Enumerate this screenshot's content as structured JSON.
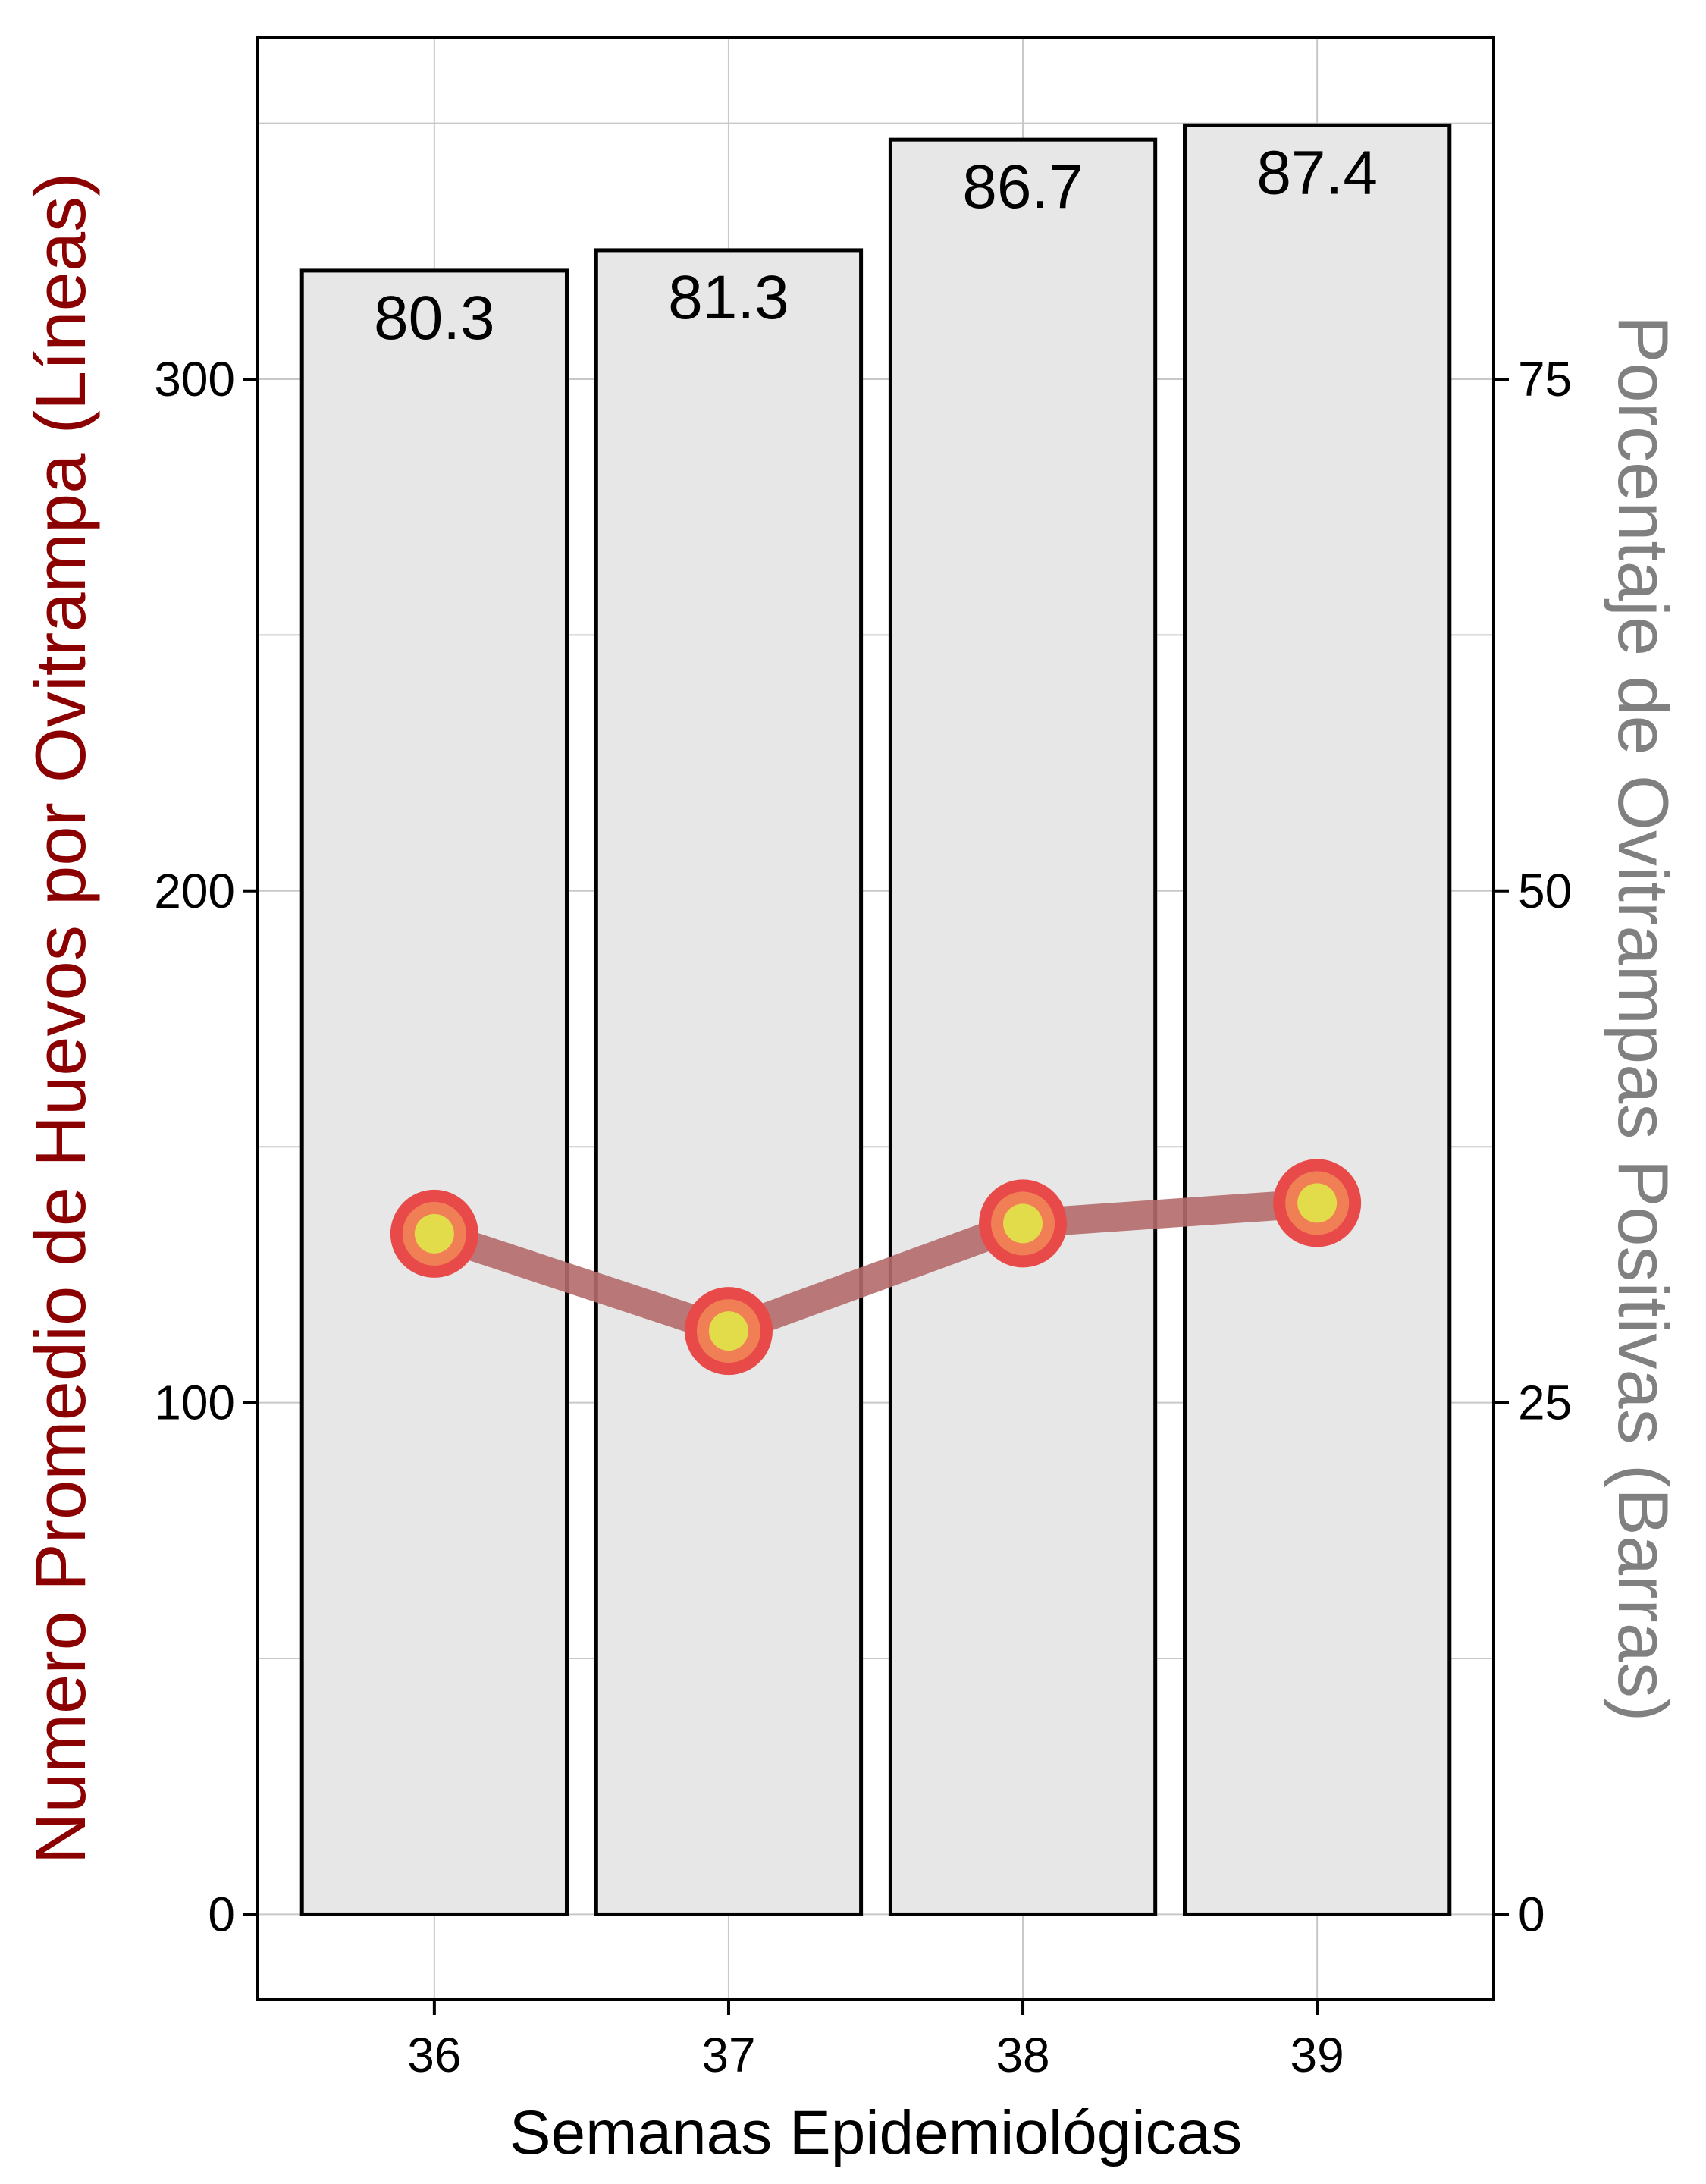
{
  "chart_data": {
    "type": "bar+line",
    "categories": [
      "36",
      "37",
      "38",
      "39"
    ],
    "bars": {
      "axis": "right",
      "values": [
        80.3,
        81.3,
        86.7,
        87.4
      ],
      "labels": [
        "80.3",
        "81.3",
        "86.7",
        "87.4"
      ],
      "fill": "#e7e7e7",
      "stroke": "#000000"
    },
    "line": {
      "axis": "left",
      "values": [
        133,
        114,
        135,
        139
      ],
      "line_color": "#b56a6a",
      "point_outer": "#e84a4a",
      "point_mid": "#f07f55",
      "point_inner": "#e2dc4a"
    },
    "xlabel": "Semanas Epidemiológicas",
    "ylabel_left": "Numero Promedio de Huevos por Ovitrampa (Líneas)",
    "ylabel_right": "Porcentaje de Ovitrampas Positivas (Barras)",
    "left_ticks": [
      "0",
      "100",
      "200",
      "300"
    ],
    "right_ticks": [
      "0",
      "25",
      "50",
      "75"
    ],
    "ylim_left": [
      -16.7,
      366.7
    ],
    "ylim_right": [
      -4.17,
      91.67
    ],
    "grid": true,
    "colors": {
      "left_axis_title": "#8b0000",
      "right_axis_title": "#808080",
      "grid": "#c8c8c8"
    }
  }
}
